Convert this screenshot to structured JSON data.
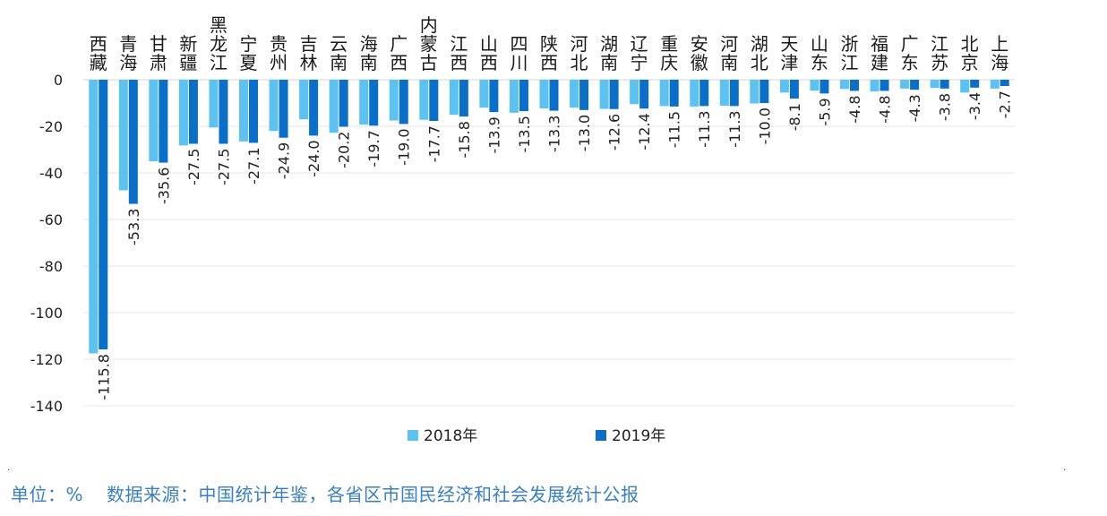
{
  "chart_data": {
    "type": "bar",
    "categories": [
      "西藏",
      "青海",
      "甘肃",
      "新疆",
      "黑龙江",
      "宁夏",
      "贵州",
      "吉林",
      "云南",
      "海南",
      "广西",
      "内蒙古",
      "江西",
      "山西",
      "四川",
      "陕西",
      "河北",
      "湖南",
      "辽宁",
      "重庆",
      "安徽",
      "河南",
      "湖北",
      "天津",
      "山东",
      "浙江",
      "福建",
      "广东",
      "江苏",
      "北京",
      "上海"
    ],
    "series": [
      {
        "name": "2018年",
        "color": "#5bc2f2",
        "values": [
          -117.5,
          -47.5,
          -35.0,
          -28.2,
          -20.5,
          -26.5,
          -22.0,
          -17.0,
          -22.8,
          -19.3,
          -17.5,
          -17.2,
          -15.0,
          -12.0,
          -14.2,
          -12.3,
          -12.0,
          -12.5,
          -10.5,
          -11.3,
          -11.5,
          -11.2,
          -10.2,
          -5.5,
          -4.7,
          -4.0,
          -5.0,
          -3.8,
          -3.5,
          -5.5,
          -3.8
        ]
      },
      {
        "name": "2019年",
        "color": "#0a6fc9",
        "values": [
          -115.8,
          -53.3,
          -35.6,
          -27.5,
          -27.5,
          -27.1,
          -24.9,
          -24.0,
          -20.2,
          -19.7,
          -19.0,
          -17.7,
          -15.8,
          -13.9,
          -13.5,
          -13.3,
          -13.0,
          -12.6,
          -12.4,
          -11.5,
          -11.3,
          -11.3,
          -10.0,
          -8.1,
          -5.9,
          -4.8,
          -4.8,
          -4.3,
          -3.8,
          -3.4,
          -2.7
        ]
      }
    ],
    "data_labels": [
      "-115.8",
      "-53.3",
      "-35.6",
      "-27.5",
      "-27.5",
      "-27.1",
      "-24.9",
      "-24.0",
      "-20.2",
      "-19.7",
      "-19.0",
      "-17.7",
      "-15.8",
      "-13.9",
      "-13.5",
      "-13.3",
      "-13.0",
      "-12.6",
      "-12.4",
      "-11.5",
      "-11.3",
      "-11.3",
      "-10.0",
      "-8.1",
      "-5.9",
      "-4.8",
      "-4.8",
      "-4.3",
      "-3.8",
      "-3.4",
      "-2.7"
    ],
    "y_ticks": [
      "0",
      "-20",
      "-40",
      "-60",
      "-80",
      "-100",
      "-120",
      "-140"
    ],
    "ylim": [
      -140,
      0
    ],
    "grid": true,
    "legend_position": "bottom"
  },
  "footer": {
    "unit": "单位：%",
    "source": "数据来源：中国统计年鉴，各省区市国民经济和社会发展统计公报"
  }
}
